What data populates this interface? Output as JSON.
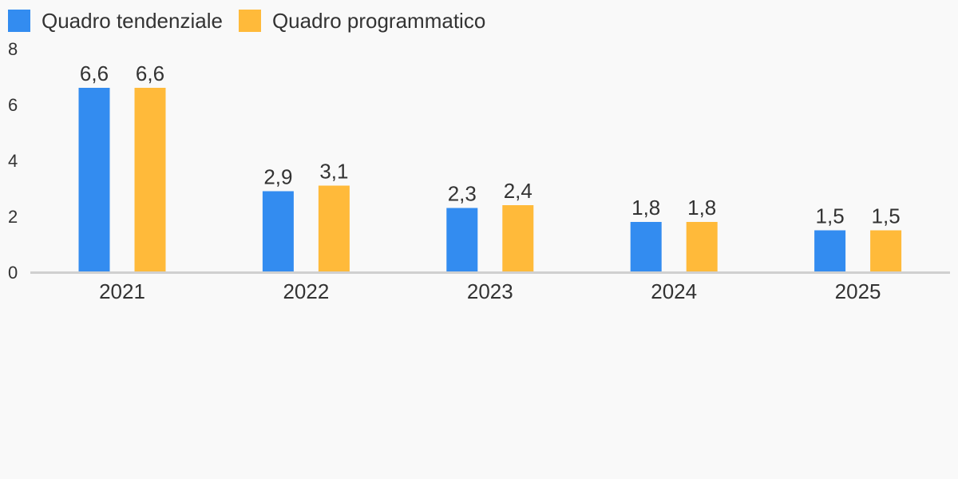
{
  "chart_data": {
    "type": "bar",
    "categories": [
      "2021",
      "2022",
      "2023",
      "2024",
      "2025"
    ],
    "series": [
      {
        "name": "Quadro tendenziale",
        "color": "#338cf0",
        "values": [
          6.6,
          2.9,
          2.3,
          1.8,
          1.5
        ],
        "labels": [
          "6,6",
          "2,9",
          "2,3",
          "1,8",
          "1,5"
        ]
      },
      {
        "name": "Quadro programmatico",
        "color": "#ffba3a",
        "values": [
          6.6,
          3.1,
          2.4,
          1.8,
          1.5
        ],
        "labels": [
          "6,6",
          "3,1",
          "2,4",
          "1,8",
          "1,5"
        ]
      }
    ],
    "ylim": [
      0,
      8
    ],
    "yticks": [
      0,
      2,
      4,
      6,
      8
    ],
    "ytick_labels": [
      "0",
      "2",
      "4",
      "6",
      "8"
    ],
    "grid": false,
    "legend_position": "top-left",
    "title": "",
    "xlabel": "",
    "ylabel": ""
  }
}
